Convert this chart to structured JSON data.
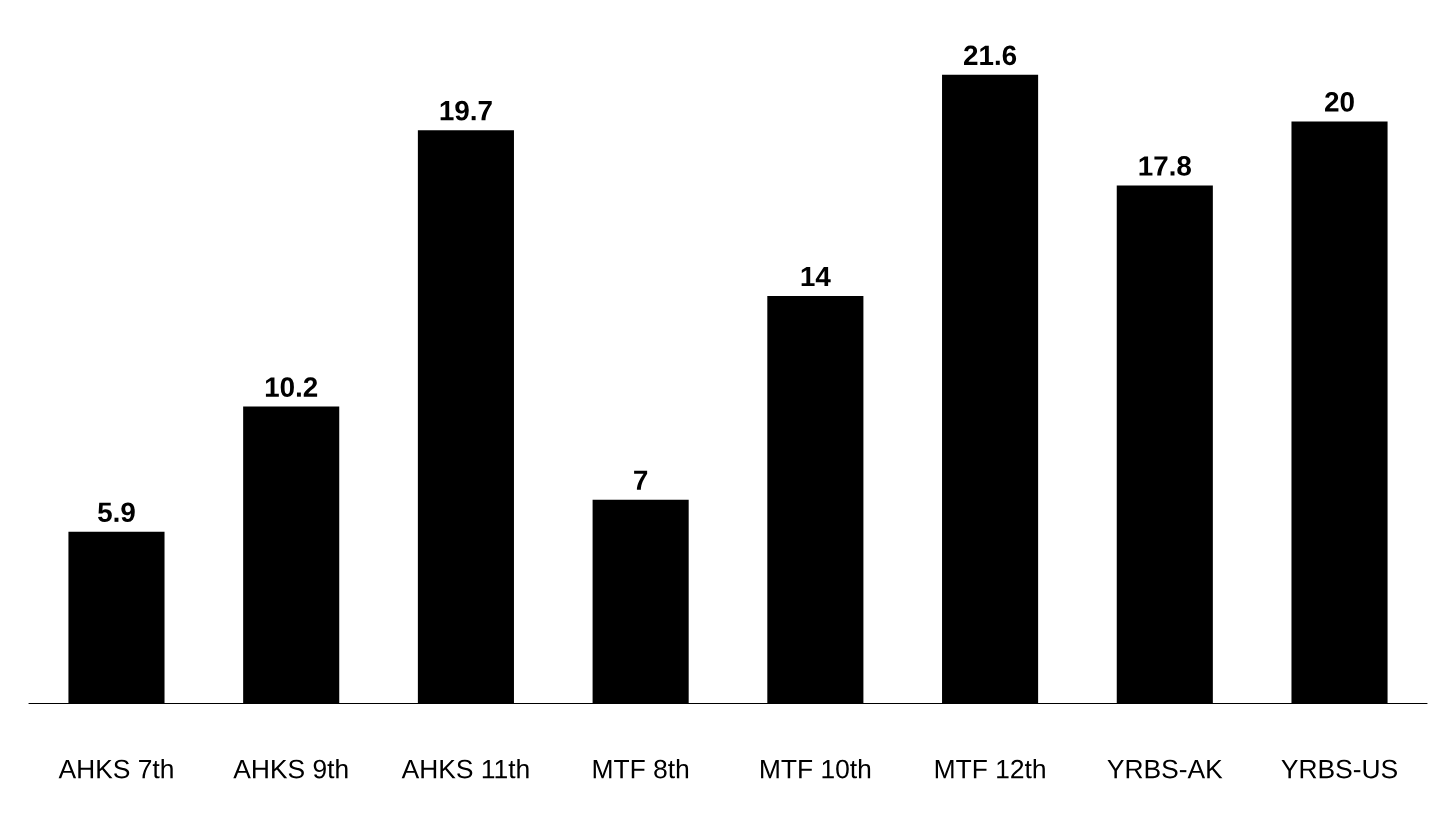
{
  "chart_data": {
    "type": "bar",
    "categories": [
      "AHKS 7th",
      "AHKS 9th",
      "AHKS 11th",
      "MTF 8th",
      "MTF 10th",
      "MTF 12th",
      "YRBS-AK",
      "YRBS-US"
    ],
    "values": [
      5.9,
      10.2,
      19.7,
      7,
      14,
      21.6,
      17.8,
      20
    ],
    "color": "#000000",
    "data_labels": true,
    "grid": false,
    "legend": false
  }
}
